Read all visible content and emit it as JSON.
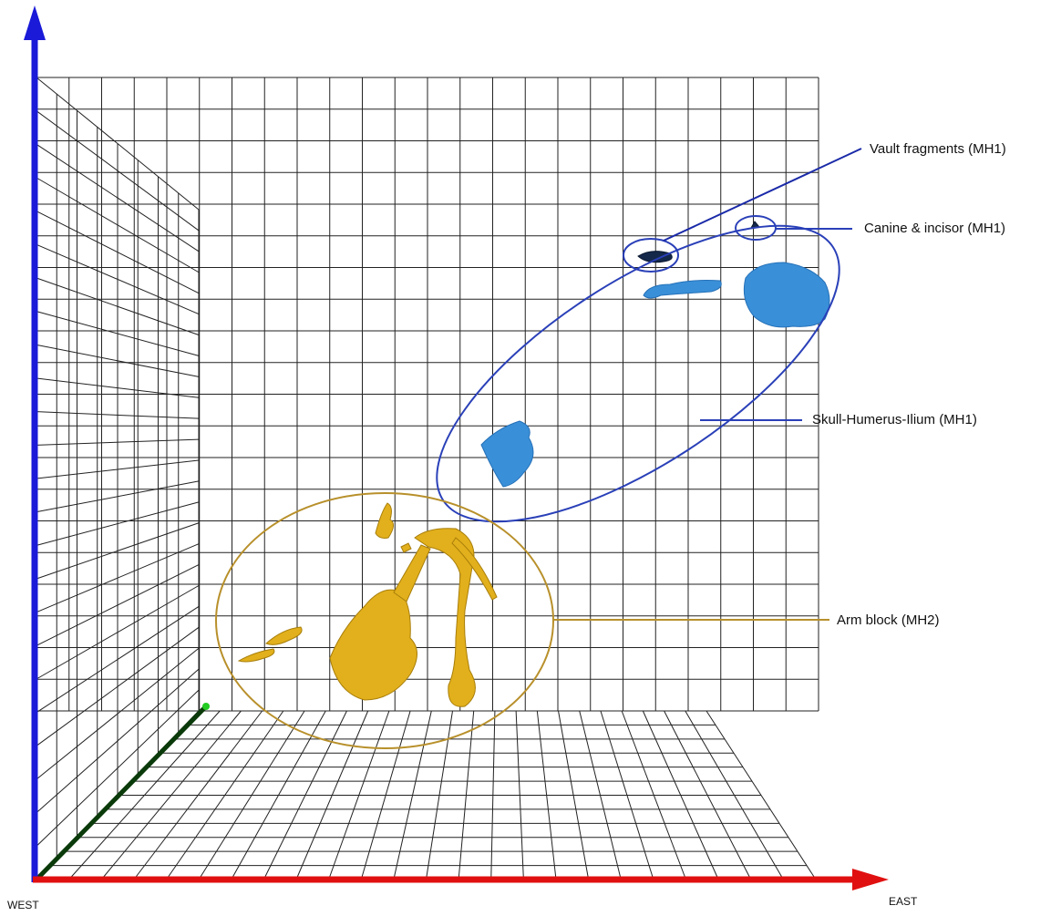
{
  "annotations": [
    {
      "label": "Vault fragments (MH1)"
    },
    {
      "label": "Canine & incisor (MH1)"
    },
    {
      "label": "Skull-Humerus-Ilium (MH1)"
    },
    {
      "label": "Arm block (MH2)"
    }
  ],
  "axes": {
    "west": "WEST",
    "east": "EAST"
  }
}
